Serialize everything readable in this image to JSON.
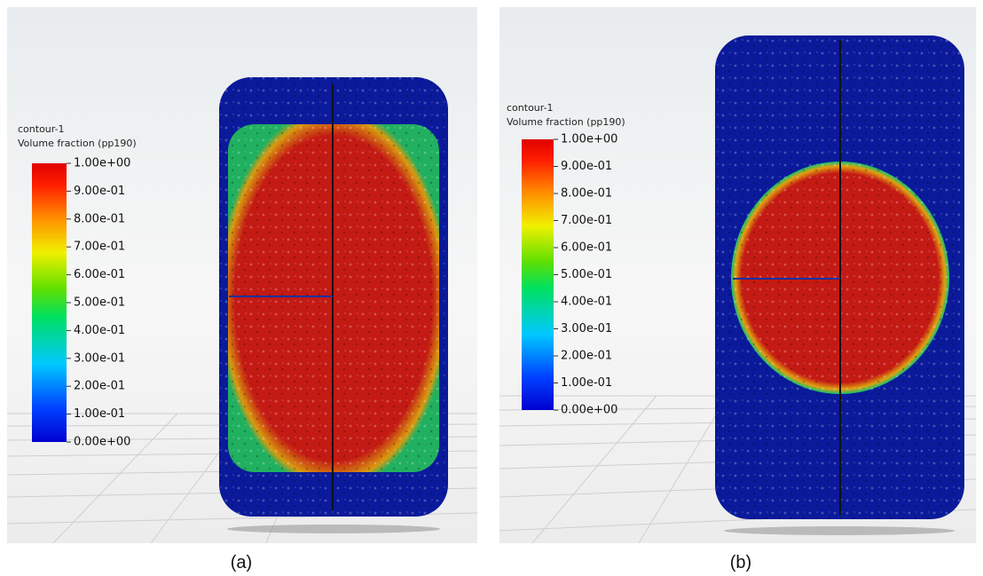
{
  "panels": [
    {
      "label": "(a)",
      "legend": {
        "title": "contour-1",
        "variable": "Volume fraction (pp190)",
        "ticks": [
          "1.00e+00",
          "9.00e-01",
          "8.00e-01",
          "7.00e-01",
          "6.00e-01",
          "5.00e-01",
          "4.00e-01",
          "3.00e-01",
          "2.00e-01",
          "1.00e-01",
          "0.00e+00"
        ]
      }
    },
    {
      "label": "(b)",
      "legend": {
        "title": "contour-1",
        "variable": "Volume fraction (pp190)",
        "ticks": [
          "1.00e+00",
          "9.00e-01",
          "8.00e-01",
          "7.00e-01",
          "6.00e-01",
          "5.00e-01",
          "4.00e-01",
          "3.00e-01",
          "2.00e-01",
          "1.00e-01",
          "0.00e+00"
        ]
      }
    }
  ]
}
